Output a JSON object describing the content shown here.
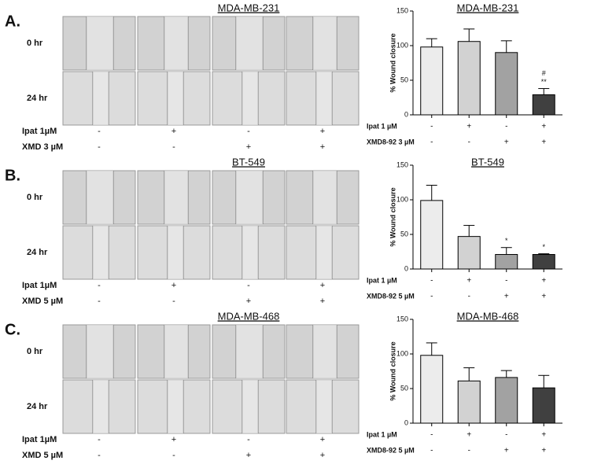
{
  "panels": [
    {
      "label": "A.",
      "image_title": "MDA-MB-231",
      "rows": [
        "0 hr",
        "24 hr"
      ],
      "treatments": [
        {
          "name": "Ipat 1µM",
          "signs": [
            "-",
            "+",
            "-",
            "+"
          ]
        },
        {
          "name": "XMD 3 µM",
          "signs": [
            "-",
            "-",
            "+",
            "+"
          ]
        }
      ]
    },
    {
      "label": "B.",
      "image_title": "BT-549",
      "rows": [
        "0 hr",
        "24 hr"
      ],
      "treatments": [
        {
          "name": "Ipat 1µM",
          "signs": [
            "-",
            "+",
            "-",
            "+"
          ]
        },
        {
          "name": "XMD 5 µM",
          "signs": [
            "-",
            "-",
            "+",
            "+"
          ]
        }
      ]
    },
    {
      "label": "C.",
      "image_title": "MDA-MB-468",
      "rows": [
        "0 hr",
        "24 hr"
      ],
      "treatments": [
        {
          "name": "Ipat 1µM",
          "signs": [
            "-",
            "+",
            "-",
            "+"
          ]
        },
        {
          "name": "XMD 5 µM",
          "signs": [
            "-",
            "-",
            "+",
            "+"
          ]
        }
      ]
    }
  ],
  "chart_data": [
    {
      "type": "bar",
      "title": "MDA-MB-231",
      "y_label": "% Wound closure",
      "categories": [
        null,
        null,
        null,
        null
      ],
      "values": [
        98,
        106,
        90,
        29
      ],
      "errors": [
        12,
        18,
        17,
        9
      ],
      "colors": [
        "#ececec",
        "#d2d2d2",
        "#a2a2a2",
        "#404040"
      ],
      "annotations": [
        null,
        null,
        null,
        [
          "#",
          "**"
        ]
      ],
      "ylim": [
        0,
        150
      ],
      "yticks": [
        0,
        50,
        100,
        150
      ],
      "treatments": [
        {
          "name": "Ipat 1 µM",
          "signs": [
            "-",
            "+",
            "-",
            "+"
          ]
        },
        {
          "name": "XMD8-92 3 µM",
          "signs": [
            "-",
            "-",
            "+",
            "+"
          ]
        }
      ]
    },
    {
      "type": "bar",
      "title": "BT-549",
      "y_label": "% Wound closure",
      "categories": [
        null,
        null,
        null,
        null
      ],
      "values": [
        99,
        47,
        21,
        21
      ],
      "errors": [
        22,
        16,
        10,
        1
      ],
      "colors": [
        "#ececec",
        "#d2d2d2",
        "#a2a2a2",
        "#404040"
      ],
      "annotations": [
        null,
        null,
        [
          "*"
        ],
        [
          "*"
        ]
      ],
      "ylim": [
        0,
        150
      ],
      "yticks": [
        0,
        50,
        100,
        150
      ],
      "treatments": [
        {
          "name": "Ipat 1 µM",
          "signs": [
            "-",
            "+",
            "-",
            "+"
          ]
        },
        {
          "name": "XMD8-92 5 µM",
          "signs": [
            "-",
            "-",
            "+",
            "+"
          ]
        }
      ]
    },
    {
      "type": "bar",
      "title": "MDA-MB-468",
      "y_label": "% Wound closure",
      "categories": [
        null,
        null,
        null,
        null
      ],
      "values": [
        98,
        61,
        66,
        51
      ],
      "errors": [
        18,
        19,
        10,
        18
      ],
      "colors": [
        "#ececec",
        "#d2d2d2",
        "#a2a2a2",
        "#404040"
      ],
      "annotations": [
        null,
        null,
        null,
        null
      ],
      "ylim": [
        0,
        150
      ],
      "yticks": [
        0,
        50,
        100,
        150
      ],
      "treatments": [
        {
          "name": "Ipat 1 µM",
          "signs": [
            "-",
            "+",
            "-",
            "+"
          ]
        },
        {
          "name": "XMD8-92 5 µM",
          "signs": [
            "-",
            "-",
            "+",
            "+"
          ]
        }
      ]
    }
  ]
}
